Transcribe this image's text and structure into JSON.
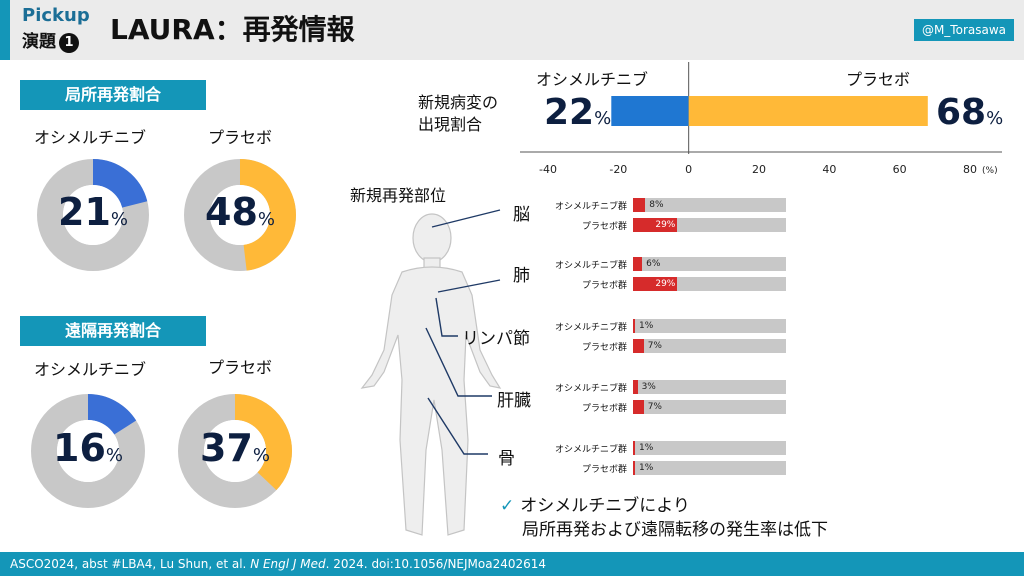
{
  "header": {
    "pickup": "Pickup",
    "enda": "演題",
    "enda_num": "1",
    "title": "LAURA：再発情報",
    "handle": "@M_Torasawa"
  },
  "colors": {
    "osimertinib": "#3a6fd6",
    "osimertinib_bar": "#1f77d2",
    "placebo": "#ffb938",
    "track": "#c8c8c8",
    "accent": "#1496b8",
    "red": "#d62b2b"
  },
  "local": {
    "section_label": "局所再発割合",
    "osi_label": "オシメルチニブ",
    "pbo_label": "プラセボ",
    "osi_value": "21",
    "pbo_value": "48",
    "unit": "%"
  },
  "distant": {
    "section_label": "遠隔再発割合",
    "osi_label": "オシメルチニブ",
    "pbo_label": "プラセボ",
    "osi_value": "16",
    "pbo_value": "37",
    "unit": "%"
  },
  "new_lesion": {
    "label_line1": "新規病変の",
    "label_line2": "出現割合",
    "osi_label": "オシメルチニブ",
    "pbo_label": "プラセボ",
    "osi_value": "22",
    "pbo_value": "68",
    "unit": "%",
    "axis_unit": "(%)"
  },
  "organs": {
    "title": "新規再発部位",
    "osi_row": "オシメルチニブ群",
    "pbo_row": "プラセボ群",
    "unit": "%",
    "items": [
      {
        "name": "脳",
        "osi": 8,
        "pbo": 29
      },
      {
        "name": "肺",
        "osi": 6,
        "pbo": 29
      },
      {
        "name": "リンパ節",
        "osi": 1,
        "pbo": 7
      },
      {
        "name": "肝臓",
        "osi": 3,
        "pbo": 7
      },
      {
        "name": "骨",
        "osi": 1,
        "pbo": 1
      }
    ]
  },
  "conclusion": {
    "check": "✓",
    "line1": "オシメルチニブにより",
    "line2": "局所再発および遠隔転移の発生率は低下"
  },
  "footer": {
    "text1": "ASCO2024, abst #LBA4, Lu Shun, et al. ",
    "journal": "N Engl J Med",
    "text2": ". 2024. doi:10.1056/NEJMoa2402614"
  },
  "chart_data": [
    {
      "type": "pie",
      "title": "局所再発割合",
      "series": [
        {
          "name": "オシメルチニブ",
          "values": [
            21
          ]
        },
        {
          "name": "プラセボ",
          "values": [
            48
          ]
        }
      ]
    },
    {
      "type": "pie",
      "title": "遠隔再発割合",
      "series": [
        {
          "name": "オシメルチニブ",
          "values": [
            16
          ]
        },
        {
          "name": "プラセボ",
          "values": [
            37
          ]
        }
      ]
    },
    {
      "type": "bar",
      "ylabel": "新規病変の出現割合",
      "categories": [
        "オシメルチニブ",
        "プラセボ"
      ],
      "values": [
        -22,
        68
      ],
      "xlim": [
        -40,
        80
      ],
      "xticks": [
        -40,
        -20,
        0,
        20,
        40,
        60,
        80
      ]
    },
    {
      "type": "bar",
      "title": "新規再発部位",
      "categories": [
        "脳",
        "肺",
        "リンパ節",
        "肝臓",
        "骨"
      ],
      "series": [
        {
          "name": "オシメルチニブ群",
          "values": [
            8,
            6,
            1,
            3,
            1
          ]
        },
        {
          "name": "プラセボ群",
          "values": [
            29,
            29,
            7,
            7,
            1
          ]
        }
      ],
      "ylim": [
        0,
        100
      ]
    }
  ]
}
